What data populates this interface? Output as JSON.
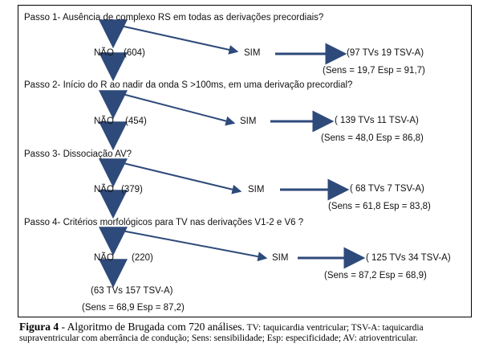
{
  "steps": [
    {
      "question": "Passo 1- Ausência de complexo RS em todas as derivações precordiais?",
      "no_label": "NÃO",
      "no_count": "(604)",
      "yes_label": "SIM",
      "yes_result": "(97  TVs   19 TSV-A)",
      "stats": "(Sens = 19,7   Esp = 91,7)"
    },
    {
      "question": "Passo 2- Início do R ao nadir da onda S  >100ms, em uma derivação precordial?",
      "no_label": "NÃO",
      "no_count": "(454)",
      "yes_label": "SIM",
      "yes_result": "( 139 TVs   11 TSV-A)",
      "stats": "(Sens = 48,0  Esp = 86,8)"
    },
    {
      "question": "Passo 3- Dissociação AV?",
      "no_label": "NÃO",
      "no_count": "(379)",
      "yes_label": "SIM",
      "yes_result": "( 68 TVs   7 TSV-A)",
      "stats": "(Sens = 61,8  Esp = 83,8)"
    },
    {
      "question": "Passo 4- Critérios morfológicos para TV nas derivações V1-2  e  V6 ?",
      "no_label": "NÃO",
      "no_count": "(220)",
      "yes_label": "SIM",
      "yes_result": "( 125 TVs  34 TSV-A)",
      "stats": "(Sens = 87,2  Esp = 68,9)"
    }
  ],
  "final": {
    "result": "(63 TVs  157  TSV-A)",
    "stats": "(Sens = 68,9  Esp = 87,2)"
  },
  "caption": {
    "fig_label": "Figura 4",
    "title": " - Algoritmo de Brugada com 720 análises.",
    "body": " TV: taquicardia ventricular; TSV-A: taquicardia supraventricular com aberrância de condução; Sens: sensibilidade; Esp: especificidade; AV: atrioventricular."
  },
  "colors": {
    "arrow": "#2e4a7a",
    "border": "#000000",
    "text": "#111111"
  }
}
